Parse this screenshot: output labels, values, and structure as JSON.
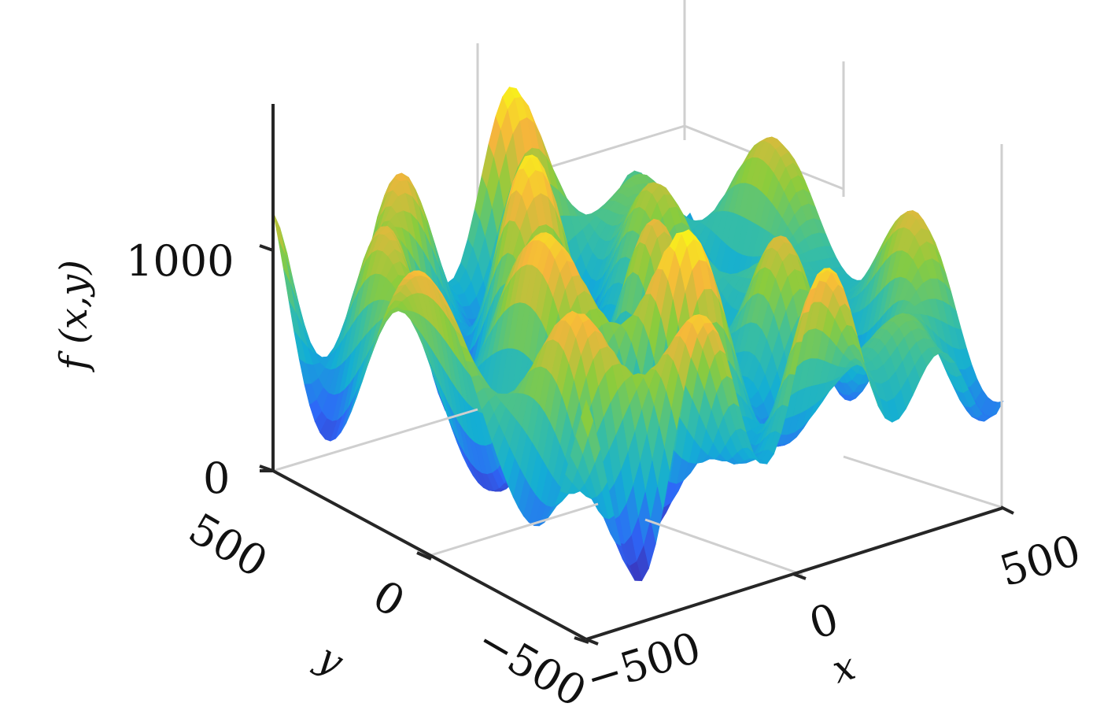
{
  "chart_data": {
    "type": "surface",
    "title": "",
    "xlabel": "x",
    "ylabel": "y",
    "zlabel": "f (x,y)",
    "xlim": [
      -500,
      500
    ],
    "ylim": [
      -500,
      500
    ],
    "zlim": [
      0,
      1600
    ],
    "x_ticks": [
      -500,
      0,
      500
    ],
    "y_ticks": [
      -500,
      0,
      500
    ],
    "z_ticks": [
      0,
      1000
    ],
    "x_tick_labels": [
      "−500",
      "0",
      "500"
    ],
    "y_tick_labels": [
      "−500",
      "0",
      "500"
    ],
    "z_tick_labels": [
      "0",
      "1000"
    ],
    "grid": true,
    "colormap": "parula",
    "colormap_colors": [
      "#3e26a8",
      "#2e67f8",
      "#13aed5",
      "#3bbf9f",
      "#8ccc3c",
      "#f5b53c",
      "#f9fb15"
    ],
    "surface_description": "Oscillating sinusoidal surface with values between about 150 and 1420, mean near 740",
    "z_range_observed": [
      150,
      1420
    ]
  }
}
